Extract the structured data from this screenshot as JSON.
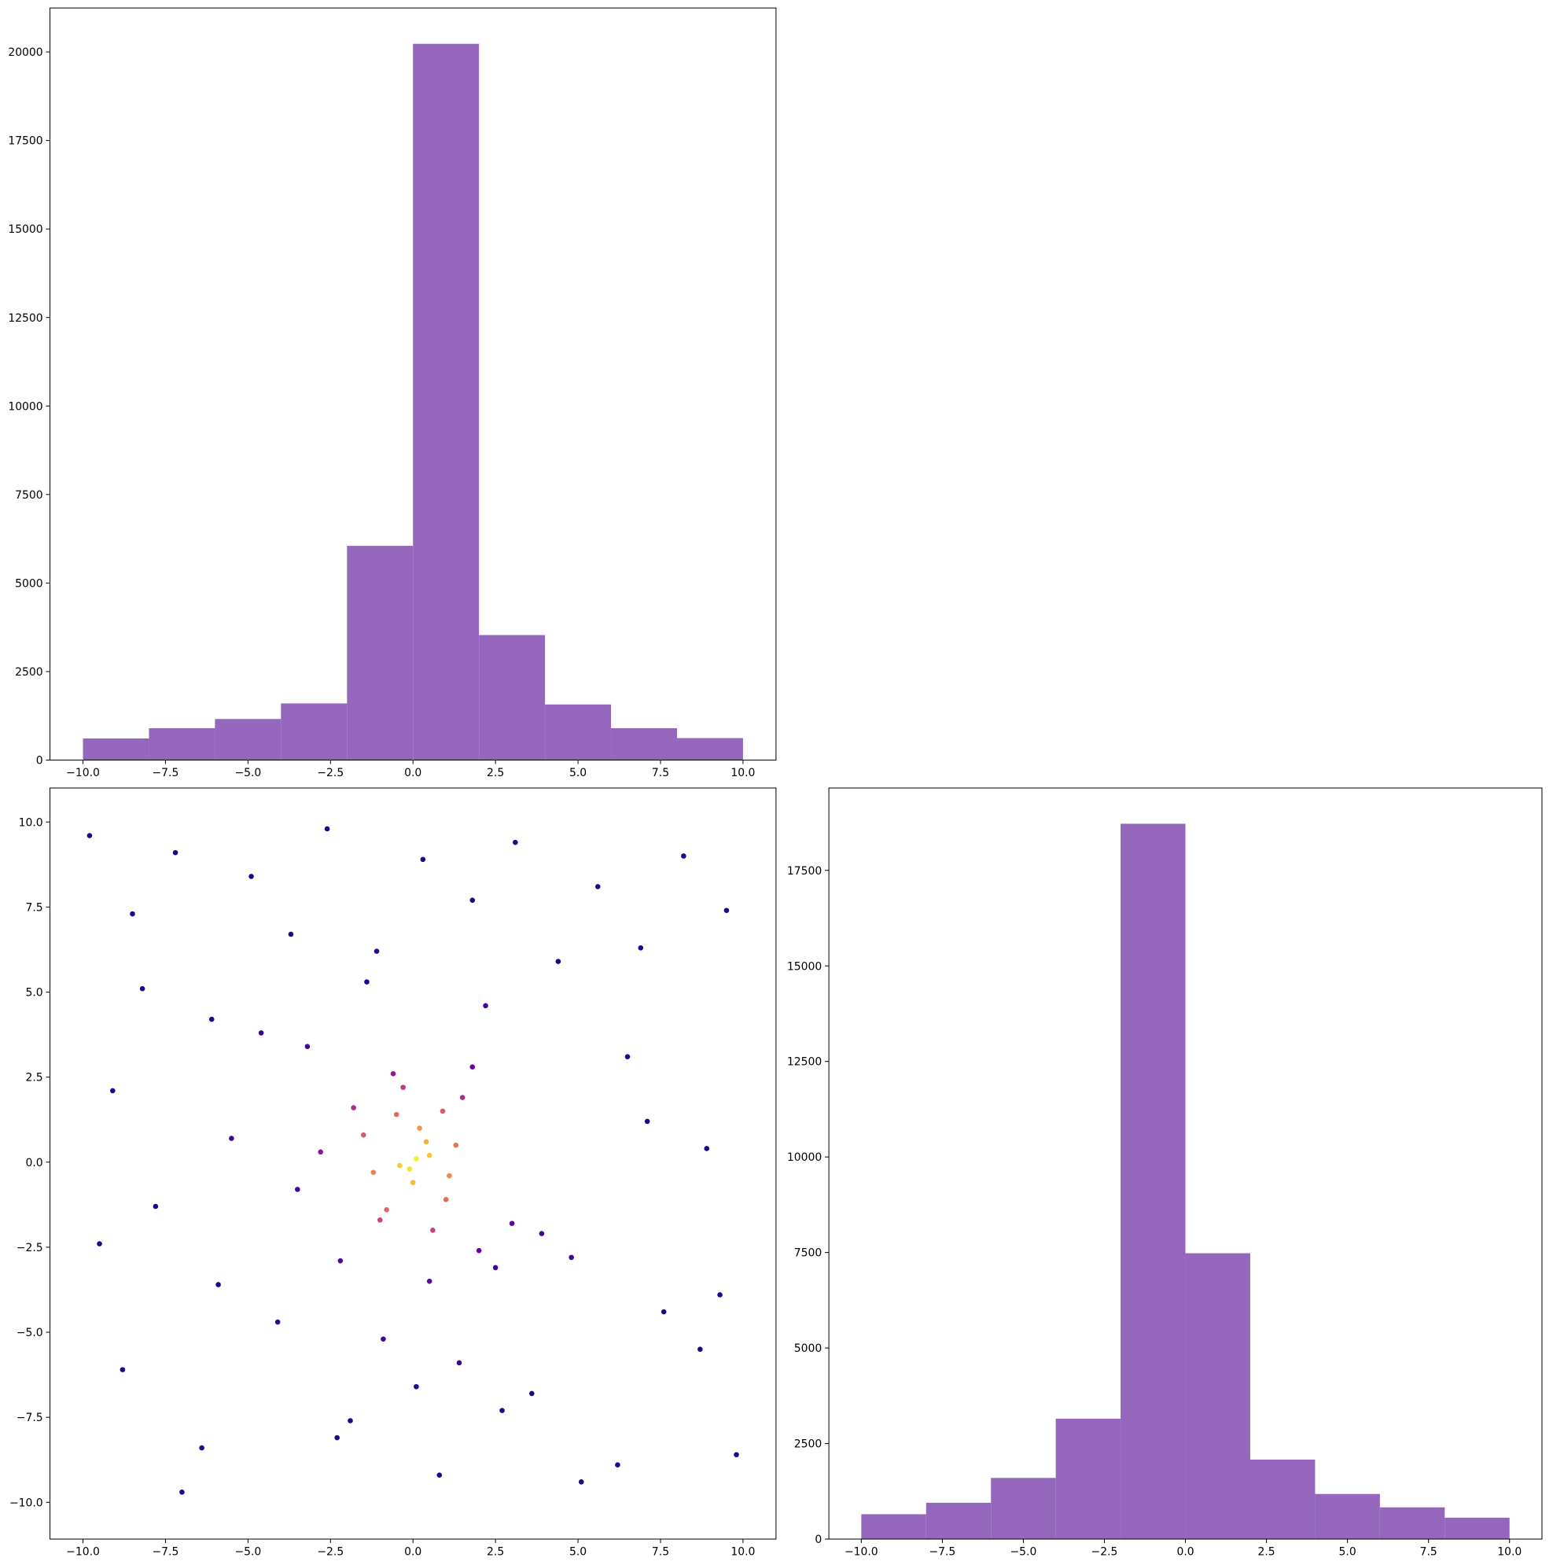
{
  "chart_data": [
    {
      "type": "histogram",
      "bins": [
        -10,
        -8,
        -6,
        -4,
        -2,
        0,
        2,
        4,
        6,
        8,
        10
      ],
      "values": [
        610,
        900,
        1160,
        1600,
        6050,
        20230,
        3530,
        1570,
        900,
        620
      ],
      "color": "#9467bd",
      "xlim": [
        -11,
        11
      ],
      "ylim": [
        0,
        21242
      ],
      "xticks": [
        {
          "value": -10,
          "label": "−10.0"
        },
        {
          "value": -7.5,
          "label": "−7.5"
        },
        {
          "value": -5,
          "label": "−5.0"
        },
        {
          "value": -2.5,
          "label": "−2.5"
        },
        {
          "value": 0,
          "label": "0.0"
        },
        {
          "value": 2.5,
          "label": "2.5"
        },
        {
          "value": 5,
          "label": "5.0"
        },
        {
          "value": 7.5,
          "label": "7.5"
        },
        {
          "value": 10,
          "label": "10.0"
        }
      ],
      "yticks": [
        0,
        2500,
        5000,
        7500,
        10000,
        12500,
        15000,
        17500,
        20000
      ]
    },
    {
      "type": "scatter",
      "x": [
        -9.8,
        -8.5,
        -7.2,
        -6.1,
        -4.9,
        -3.7,
        -2.6,
        -1.4,
        0.3,
        1.8,
        3.1,
        4.4,
        5.6,
        6.9,
        8.2,
        9.5,
        -9.1,
        -7.8,
        -5.5,
        -3.2,
        -0.9,
        2.2,
        4.8,
        7.1,
        9.3,
        -8.8,
        -6.4,
        -4.1,
        -1.9,
        0.8,
        3.6,
        6.2,
        8.7,
        -9.5,
        -7.0,
        -4.6,
        -2.3,
        0.1,
        2.7,
        5.1,
        7.6,
        9.8,
        -8.2,
        -5.9,
        -3.5,
        -1.1,
        1.4,
        3.9,
        6.5,
        8.9,
        -1.5,
        -1.0,
        -0.5,
        0,
        0.5,
        1.0,
        1.5,
        2.0,
        -1.2,
        -0.3,
        0.6,
        1.3,
        -0.8,
        0.2,
        1.1,
        -0.4,
        0.4,
        0.9,
        0.1,
        -0.1,
        2.5,
        -2.2,
        1.8,
        -1.8,
        3.0,
        -2.8,
        0.5,
        -0.6
      ],
      "y": [
        9.6,
        7.3,
        9.1,
        4.2,
        8.4,
        6.7,
        9.8,
        5.3,
        8.9,
        7.7,
        9.4,
        5.9,
        8.1,
        6.3,
        9.0,
        7.4,
        2.1,
        -1.3,
        0.7,
        3.4,
        -5.2,
        4.6,
        -2.8,
        1.2,
        -3.9,
        -6.1,
        -8.4,
        -4.7,
        -7.6,
        -9.2,
        -6.8,
        -8.9,
        -5.5,
        -2.4,
        -9.7,
        3.8,
        -8.1,
        -6.6,
        -7.3,
        -9.4,
        -4.4,
        -8.6,
        5.1,
        -3.6,
        -0.8,
        6.2,
        -5.9,
        -2.1,
        3.1,
        0.4,
        0.8,
        -1.7,
        1.4,
        -0.6,
        0.2,
        -1.1,
        1.9,
        -2.6,
        -0.3,
        2.2,
        -2.0,
        0.5,
        -1.4,
        1.0,
        -0.4,
        -0.1,
        0.6,
        1.5,
        0.1,
        -0.2,
        -3.1,
        -2.9,
        2.8,
        1.6,
        -1.8,
        0.3,
        -3.5,
        2.6
      ],
      "c": [
        0.04,
        0.04,
        0.04,
        0.04,
        0.04,
        0.04,
        0.04,
        0.04,
        0.04,
        0.04,
        0.04,
        0.04,
        0.04,
        0.04,
        0.04,
        0.04,
        0.04,
        0.04,
        0.1,
        0.12,
        0.12,
        0.12,
        0.1,
        0.04,
        0.04,
        0.04,
        0.04,
        0.08,
        0.04,
        0.04,
        0.04,
        0.04,
        0.04,
        0.04,
        0.04,
        0.08,
        0.04,
        0.04,
        0.04,
        0.04,
        0.04,
        0.04,
        0.04,
        0.04,
        0.12,
        0.08,
        0.1,
        0.12,
        0.06,
        0.04,
        0.55,
        0.5,
        0.62,
        0.85,
        0.87,
        0.62,
        0.4,
        0.2,
        0.69,
        0.45,
        0.48,
        0.65,
        0.6,
        0.75,
        0.71,
        0.9,
        0.82,
        0.56,
        0.98,
        0.95,
        0.12,
        0.15,
        0.2,
        0.4,
        0.18,
        0.3,
        0.18,
        0.32
      ],
      "colormap": "plasma",
      "xlim": [
        -11,
        11
      ],
      "ylim": [
        -11.08,
        11
      ],
      "xticks": [
        {
          "value": -10,
          "label": "−10.0"
        },
        {
          "value": -7.5,
          "label": "−7.5"
        },
        {
          "value": -5,
          "label": "−5.0"
        },
        {
          "value": -2.5,
          "label": "−2.5"
        },
        {
          "value": 0,
          "label": "0.0"
        },
        {
          "value": 2.5,
          "label": "2.5"
        },
        {
          "value": 5,
          "label": "5.0"
        },
        {
          "value": 7.5,
          "label": "7.5"
        },
        {
          "value": 10,
          "label": "10.0"
        }
      ],
      "yticks": [
        {
          "value": -10,
          "label": "−10.0"
        },
        {
          "value": -7.5,
          "label": "−7.5"
        },
        {
          "value": -5,
          "label": "−5.0"
        },
        {
          "value": -2.5,
          "label": "−2.5"
        },
        {
          "value": 0,
          "label": "0.0"
        },
        {
          "value": 2.5,
          "label": "2.5"
        },
        {
          "value": 5,
          "label": "5.0"
        },
        {
          "value": 7.5,
          "label": "7.5"
        },
        {
          "value": 10,
          "label": "10.0"
        }
      ]
    },
    {
      "type": "histogram",
      "bins": [
        -10,
        -8,
        -6,
        -4,
        -2,
        0,
        2,
        4,
        6,
        8,
        10
      ],
      "values": [
        650,
        950,
        1600,
        3150,
        18720,
        7480,
        2080,
        1180,
        830,
        560
      ],
      "color": "#9467bd",
      "xlim": [
        -11,
        11
      ],
      "ylim": [
        0,
        19656
      ],
      "xticks": [
        {
          "value": -10,
          "label": "−10.0"
        },
        {
          "value": -7.5,
          "label": "−7.5"
        },
        {
          "value": -5,
          "label": "−5.0"
        },
        {
          "value": -2.5,
          "label": "−2.5"
        },
        {
          "value": 0,
          "label": "0.0"
        },
        {
          "value": 2.5,
          "label": "2.5"
        },
        {
          "value": 5,
          "label": "5.0"
        },
        {
          "value": 7.5,
          "label": "7.5"
        },
        {
          "value": 10,
          "label": "10.0"
        }
      ],
      "yticks": [
        0,
        2500,
        5000,
        7500,
        10000,
        12500,
        15000,
        17500
      ]
    }
  ]
}
